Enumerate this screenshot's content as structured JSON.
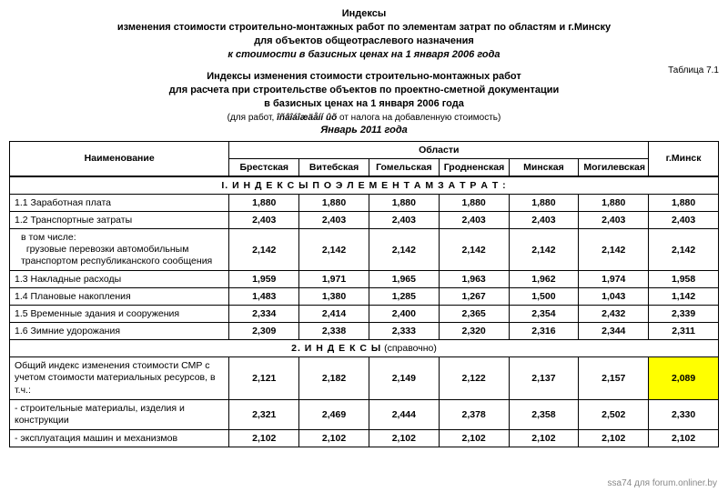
{
  "title": {
    "l1": "Индексы",
    "l2": "изменения стоимости строительно-монтажных работ по элементам затрат по областям и г.Минску",
    "l3": "для объектов общеотраслевого назначения",
    "l4": "к стоимости в базисных ценах на 1 января 2006 года"
  },
  "table_label": "Таблица 7.1",
  "sub": {
    "l1": "Индексы  изменения стоимости строительно-монтажных работ",
    "l2": "для расчета при строительстве объектов по проектно-сметной документации",
    "l3": "в базисных ценах на 1 января 2006 года"
  },
  "note_prefix": "(для работ, ",
  "note_garbled": "îñâîáîæäåíí ûõ",
  "note_suffix": " от налога на добавленную стоимость)",
  "period": "Январь 2011 года",
  "head": {
    "name": "Наименование",
    "group": "Области",
    "minsk": "г.Минск",
    "cols": [
      "Брестская",
      "Витебская",
      "Гомельская",
      "Гродненская",
      "Минская",
      "Могилевская"
    ]
  },
  "section1": "I.  И Н Д Е К С Ы   П О   Э Л Е М Е Н Т А М   З А Т Р А Т :",
  "section2_a": "2.   И Н Д Е К С Ы",
  "section2_b": "  (справочно)",
  "rows": {
    "r11": {
      "name": "1.1 Заработная плата",
      "v": [
        "1,880",
        "1,880",
        "1,880",
        "1,880",
        "1,880",
        "1,880",
        "1,880"
      ]
    },
    "r12": {
      "name": "1.2 Транспортные затраты",
      "v": [
        "2,403",
        "2,403",
        "2,403",
        "2,403",
        "2,403",
        "2,403",
        "2,403"
      ]
    },
    "r12a": {
      "name": "в том числе:\n  грузовые перевозки автомобильным транспортом республиканского сообщения",
      "v": [
        "2,142",
        "2,142",
        "2,142",
        "2,142",
        "2,142",
        "2,142",
        "2,142"
      ]
    },
    "r13": {
      "name": "1.3 Накладные расходы",
      "v": [
        "1,959",
        "1,971",
        "1,965",
        "1,963",
        "1,962",
        "1,974",
        "1,958"
      ]
    },
    "r14": {
      "name": "1.4 Плановые накопления",
      "v": [
        "1,483",
        "1,380",
        "1,285",
        "1,267",
        "1,500",
        "1,043",
        "1,142"
      ]
    },
    "r15": {
      "name": "1.5 Временные здания и сооружения",
      "v": [
        "2,334",
        "2,414",
        "2,400",
        "2,365",
        "2,354",
        "2,432",
        "2,339"
      ]
    },
    "r16": {
      "name": "1.6 Зимние удорожания",
      "v": [
        "2,309",
        "2,338",
        "2,333",
        "2,320",
        "2,316",
        "2,344",
        "2,311"
      ]
    },
    "r2a": {
      "name": "Общий индекс изменения стоимости СМР с учетом стоимости материальных ресурсов, в т.ч.:",
      "v": [
        "2,121",
        "2,182",
        "2,149",
        "2,122",
        "2,137",
        "2,157",
        "2,089"
      ]
    },
    "r2b": {
      "name": "  - строительные материалы, изделия и конструкции",
      "v": [
        "2,321",
        "2,469",
        "2,444",
        "2,378",
        "2,358",
        "2,502",
        "2,330"
      ]
    },
    "r2c": {
      "name": "  - эксплуатация машин и механизмов",
      "v": [
        "2,102",
        "2,102",
        "2,102",
        "2,102",
        "2,102",
        "2,102",
        "2,102"
      ]
    }
  },
  "highlight": {
    "row": "r2a",
    "col": 6,
    "bg": "#ffff00"
  },
  "watermark": "ssa74 для forum.onliner.by"
}
